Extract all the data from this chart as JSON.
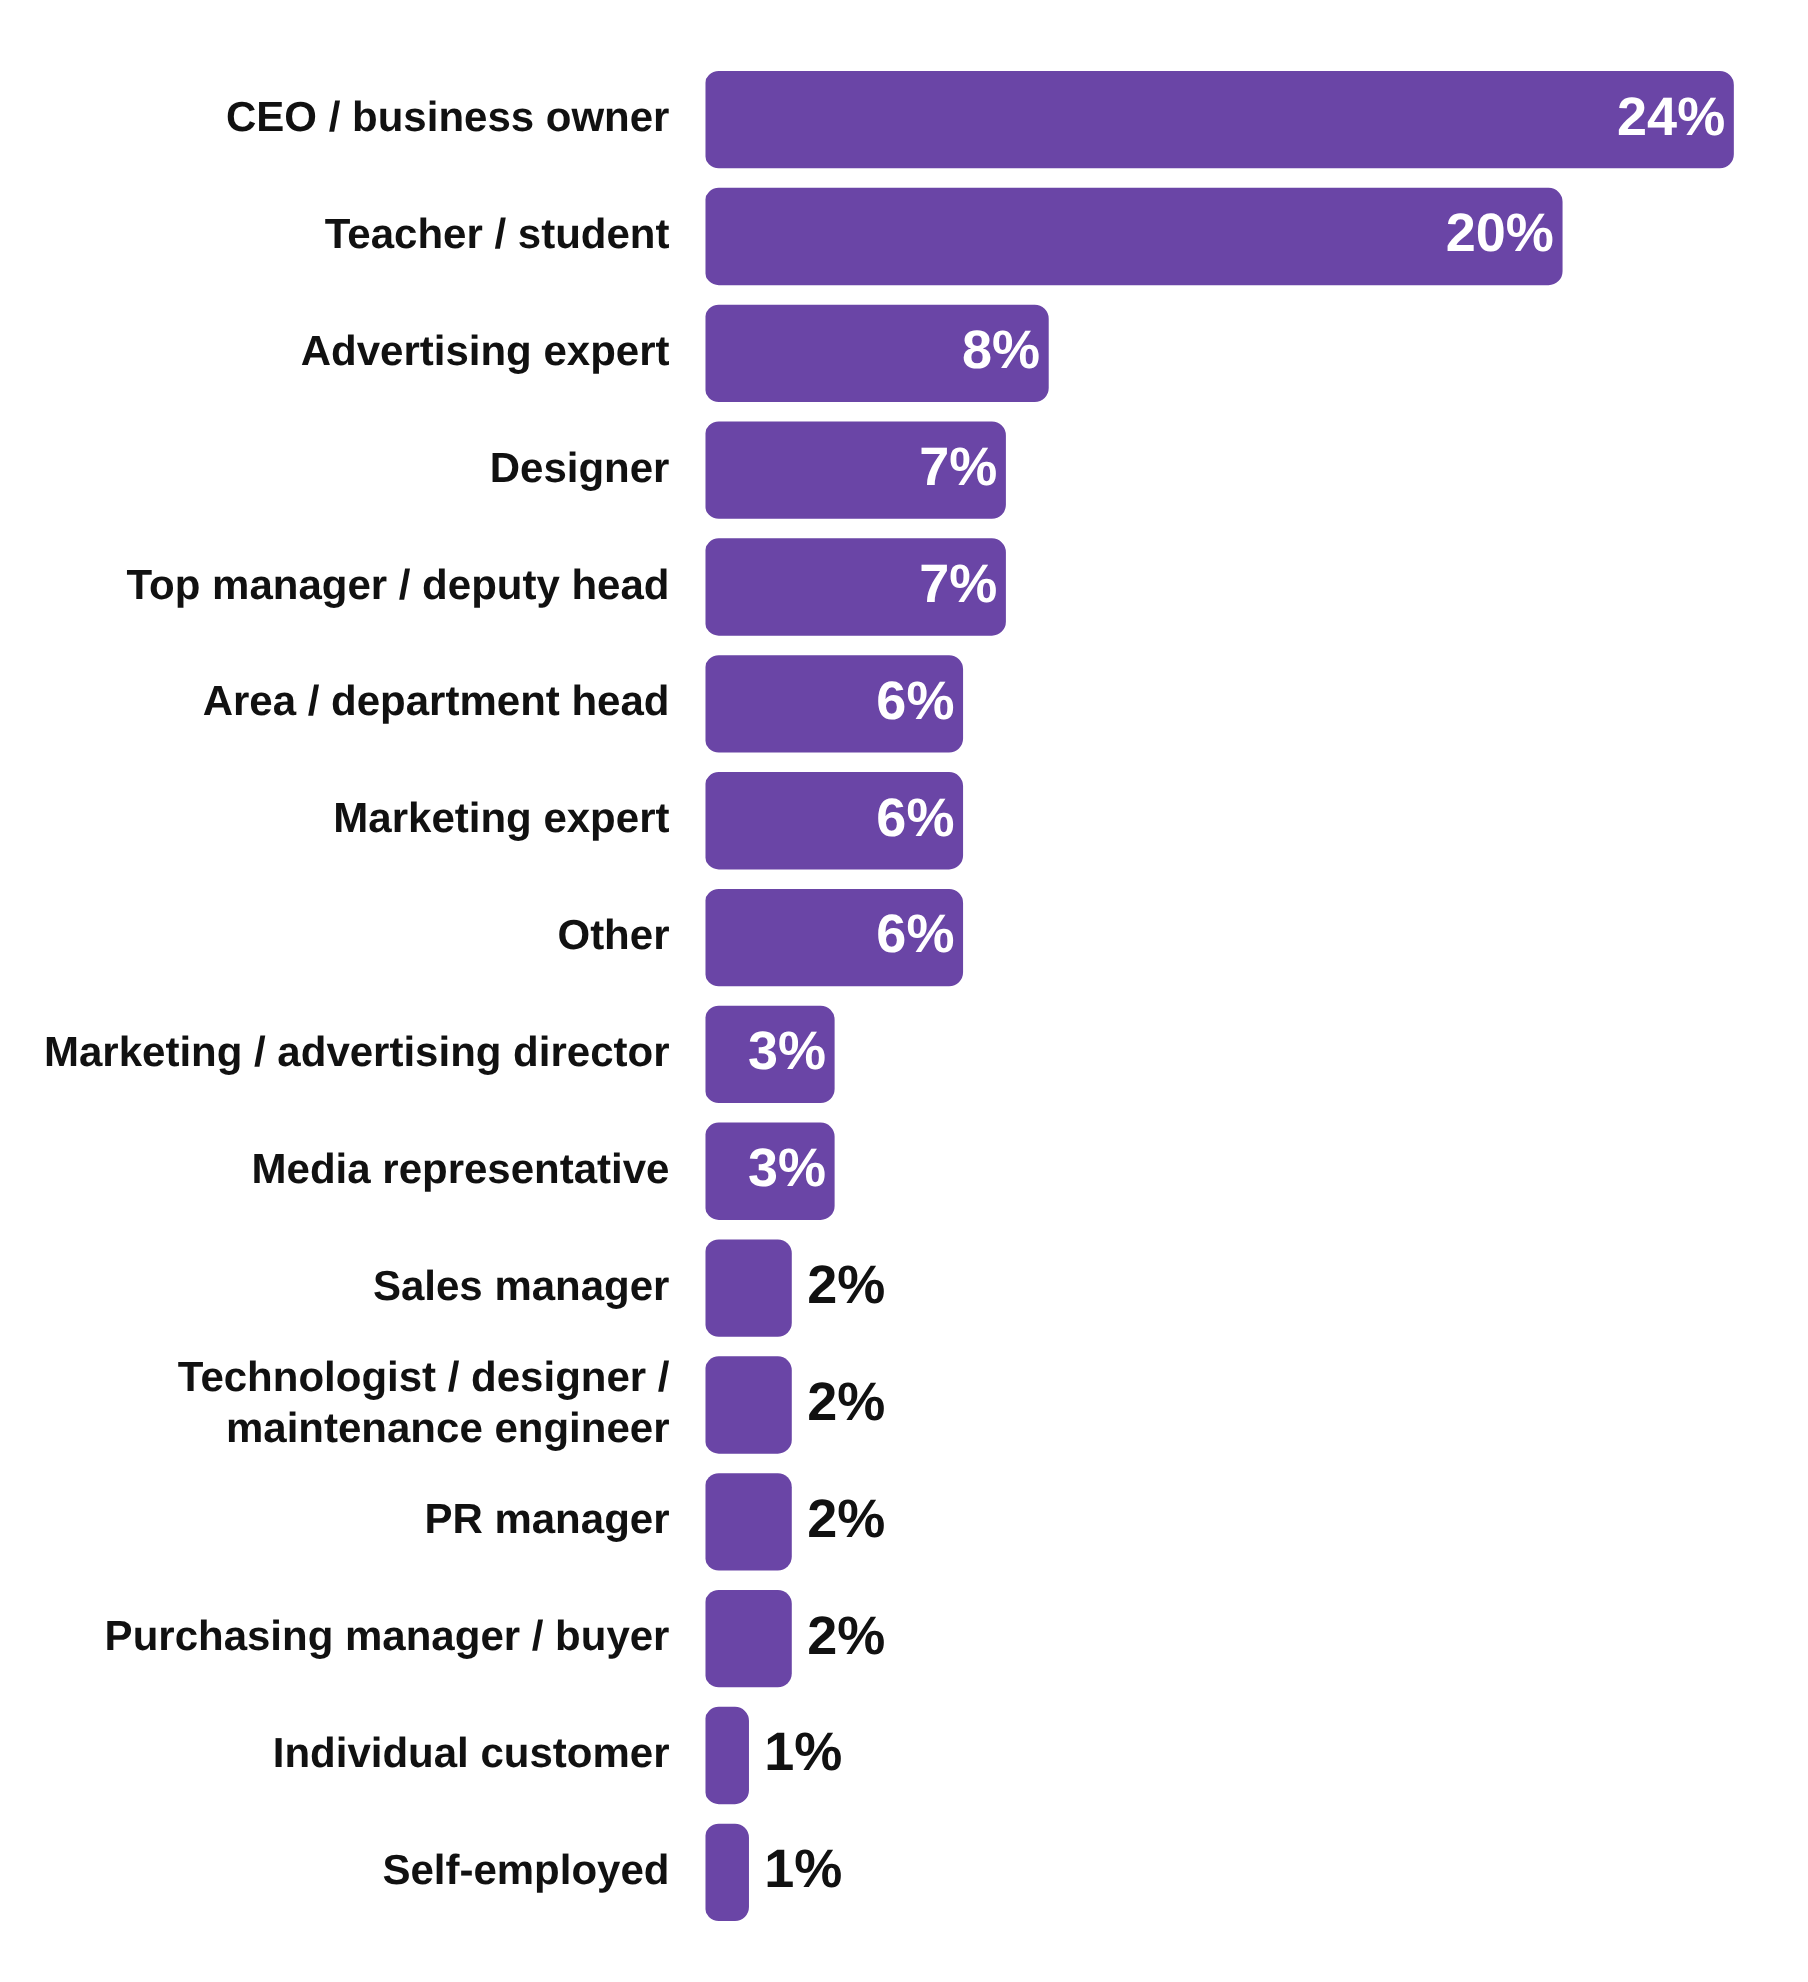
{
  "chart_data": {
    "type": "bar",
    "orientation": "horizontal",
    "categories": [
      "CEO / business owner",
      "Teacher / student",
      "Advertising expert",
      "Designer",
      "Top manager / deputy head",
      "Area / department head",
      "Marketing expert",
      "Other",
      "Marketing / advertising director",
      "Media representative",
      "Sales manager",
      "Technologist / designer / maintenance engineer",
      "PR manager",
      "Purchasing manager / buyer",
      "Individual customer",
      "Self-employed"
    ],
    "values": [
      24,
      20,
      8,
      7,
      7,
      6,
      6,
      6,
      3,
      3,
      2,
      2,
      2,
      2,
      1,
      1
    ],
    "value_labels": [
      "24%",
      "20%",
      "8%",
      "7%",
      "7%",
      "6%",
      "6%",
      "6%",
      "3%",
      "3%",
      "2%",
      "2%",
      "2%",
      "2%",
      "1%",
      "1%"
    ],
    "color": "#6a45a6",
    "tick_labels": "y"
  }
}
